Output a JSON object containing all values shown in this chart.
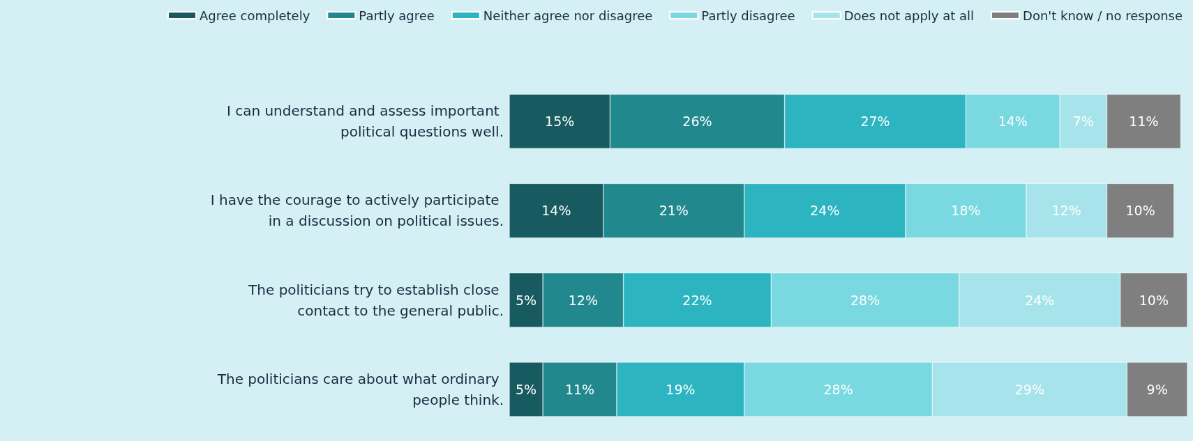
{
  "chart_data": {
    "type": "bar",
    "orientation": "horizontal",
    "stacked": true,
    "legend": "top",
    "tick_labels": "y",
    "categories": [
      "I can understand and assess important political questions well.",
      "I have the courage to actively participate in a discussion on political issues.",
      "The politicians try to establish close contact to the general public.",
      "The politicians care about what ordinary people think."
    ],
    "series": [
      {
        "name": "Agree completely",
        "color": "#175a5f",
        "values": [
          15,
          14,
          5,
          5
        ],
        "value_labels": [
          "15%",
          "14%",
          "5%",
          "5%"
        ]
      },
      {
        "name": "Partly agree",
        "color": "#21898e",
        "values": [
          26,
          21,
          12,
          11
        ],
        "value_labels": [
          "26%",
          "21%",
          "12%",
          "11%"
        ]
      },
      {
        "name": "Neither agree nor disagree",
        "color": "#2cb5c0",
        "values": [
          27,
          24,
          22,
          19
        ],
        "value_labels": [
          "27%",
          "24%",
          "22%",
          "19%"
        ]
      },
      {
        "name": "Partly disagree",
        "color": "#79d8e0",
        "values": [
          14,
          18,
          28,
          28
        ],
        "value_labels": [
          "14%",
          "18%",
          "28%",
          "28%"
        ]
      },
      {
        "name": "Does not apply at all",
        "color": "#a6e3ea",
        "values": [
          7,
          12,
          24,
          29
        ],
        "value_labels": [
          "7%",
          "12%",
          "24%",
          "29%"
        ]
      },
      {
        "name": "Don't know / no response",
        "color": "#7f7f7f",
        "values": [
          11,
          10,
          10,
          9
        ],
        "value_labels": [
          "11%",
          "10%",
          "10%",
          "9%"
        ]
      }
    ]
  }
}
